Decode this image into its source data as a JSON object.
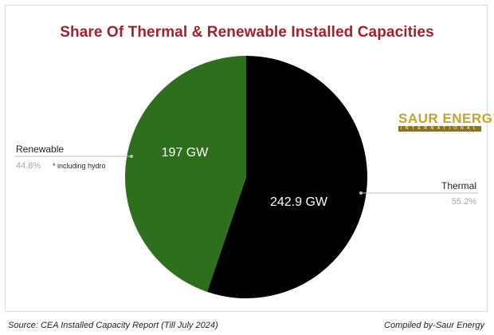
{
  "chart_data": {
    "type": "pie",
    "title": "Share Of Thermal & Renewable Installed Capacities",
    "slices": [
      {
        "name": "Thermal",
        "value": 242.9,
        "value_label": "242.9 GW",
        "percent_label": "55.2%",
        "color": "#000000"
      },
      {
        "name": "Renewable",
        "value": 197,
        "value_label": "197 GW",
        "percent_label": "44.8%",
        "color": "#2e6f1e",
        "note": "* including hydro"
      }
    ],
    "start_angle_deg": 0,
    "direction": "clockwise",
    "legend": "none"
  },
  "logo": {
    "main": "SAUR ENERGY",
    "sub": "INTERNATIONAL"
  },
  "footer": {
    "source": "Source: CEA Installed Capacity Report (Till July 2024)",
    "credit": "Compiled by-Saur Energy"
  }
}
